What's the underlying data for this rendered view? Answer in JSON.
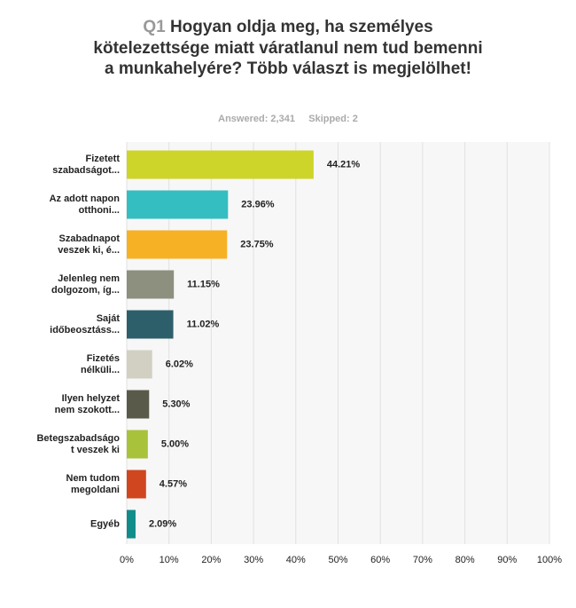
{
  "chart_data": {
    "type": "bar",
    "orientation": "horizontal",
    "question_number": "Q1",
    "title": "Hogyan oldja meg, ha személyes kötelezettsége miatt váratlanul nem tud bemenni a munkahelyére? Több választ is megjelölhet!",
    "answered": "Answered: 2,341",
    "skipped": "Skipped: 2",
    "categories": [
      [
        "Fizetett",
        "szabadságot..."
      ],
      [
        "Az adott napon",
        "otthoni..."
      ],
      [
        "Szabadnapot",
        "veszek ki, é..."
      ],
      [
        "Jelenleg nem",
        "dolgozom, íg..."
      ],
      [
        "Saját",
        "időbeosztáss..."
      ],
      [
        "Fizetés",
        "nélküli..."
      ],
      [
        "Ilyen helyzet",
        "nem szokott..."
      ],
      [
        "Betegszabadságo",
        "t veszek ki"
      ],
      [
        "Nem tudom",
        "megoldani"
      ],
      [
        "Egyéb"
      ]
    ],
    "values": [
      44.21,
      23.96,
      23.75,
      11.15,
      11.02,
      6.02,
      5.3,
      5.0,
      4.57,
      2.09
    ],
    "value_labels": [
      "44.21%",
      "23.96%",
      "23.75%",
      "11.15%",
      "11.02%",
      "6.02%",
      "5.30%",
      "5.00%",
      "4.57%",
      "2.09%"
    ],
    "colors": [
      "#cdd42a",
      "#35bec1",
      "#f7b125",
      "#8d8f7f",
      "#2d5f6b",
      "#d2d0c3",
      "#5a5a4a",
      "#a8c23b",
      "#d0461f",
      "#108d8a"
    ],
    "xlim": [
      0,
      100
    ],
    "xticks": [
      {
        "value": 0,
        "label": "0%"
      },
      {
        "value": 10,
        "label": "10%"
      },
      {
        "value": 20,
        "label": "20%"
      },
      {
        "value": 30,
        "label": "30%"
      },
      {
        "value": 40,
        "label": "40%"
      },
      {
        "value": 50,
        "label": "50%"
      },
      {
        "value": 60,
        "label": "60%"
      },
      {
        "value": 70,
        "label": "70%"
      },
      {
        "value": 80,
        "label": "80%"
      },
      {
        "value": 90,
        "label": "90%"
      },
      {
        "value": 100,
        "label": "100%"
      }
    ],
    "grid": true
  }
}
